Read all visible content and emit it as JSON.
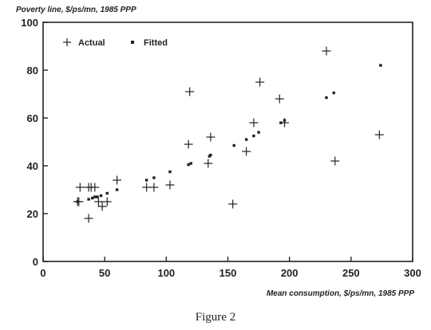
{
  "chart_data": {
    "type": "scatter",
    "ylabel": "Poverty line, $/ps/mn, 1985 PPP",
    "xlabel": "Mean consumption, $/ps/mn, 1985 PPP",
    "xlim": [
      0,
      300
    ],
    "ylim": [
      0,
      100
    ],
    "xticks": [
      "0",
      "50",
      "100",
      "150",
      "200",
      "250",
      "300"
    ],
    "yticks": [
      "0",
      "20",
      "40",
      "60",
      "80",
      "100"
    ],
    "legend_position": "top-left",
    "series": [
      {
        "name": "Actual",
        "marker": "plus",
        "points": [
          [
            28,
            25
          ],
          [
            29,
            25
          ],
          [
            30,
            31
          ],
          [
            37,
            31
          ],
          [
            37,
            18
          ],
          [
            39,
            31
          ],
          [
            42,
            31
          ],
          [
            45,
            25
          ],
          [
            48,
            23
          ],
          [
            52,
            25
          ],
          [
            60,
            34
          ],
          [
            84,
            31
          ],
          [
            90,
            31
          ],
          [
            103,
            32
          ],
          [
            118,
            49
          ],
          [
            119,
            71
          ],
          [
            134,
            41
          ],
          [
            136,
            52
          ],
          [
            154,
            24
          ],
          [
            165,
            46
          ],
          [
            171,
            58
          ],
          [
            176,
            75
          ],
          [
            192,
            68
          ],
          [
            196,
            58
          ],
          [
            230,
            88
          ],
          [
            237,
            42
          ],
          [
            273,
            53
          ]
        ]
      },
      {
        "name": "Fitted",
        "marker": "dot",
        "points": [
          [
            28,
            25
          ],
          [
            37,
            26
          ],
          [
            40,
            26.5
          ],
          [
            42,
            27
          ],
          [
            44,
            27
          ],
          [
            47,
            27.5
          ],
          [
            52,
            28.5
          ],
          [
            60,
            30
          ],
          [
            84,
            34
          ],
          [
            90,
            35
          ],
          [
            103,
            37.5
          ],
          [
            118,
            40.5
          ],
          [
            120,
            41
          ],
          [
            135,
            44
          ],
          [
            136,
            44.5
          ],
          [
            155,
            48.5
          ],
          [
            165,
            51
          ],
          [
            171,
            52.5
          ],
          [
            175,
            54
          ],
          [
            193,
            58
          ],
          [
            196,
            59
          ],
          [
            230,
            68.5
          ],
          [
            236,
            70.5
          ],
          [
            274,
            82
          ]
        ]
      }
    ]
  },
  "caption": "Figure 2"
}
